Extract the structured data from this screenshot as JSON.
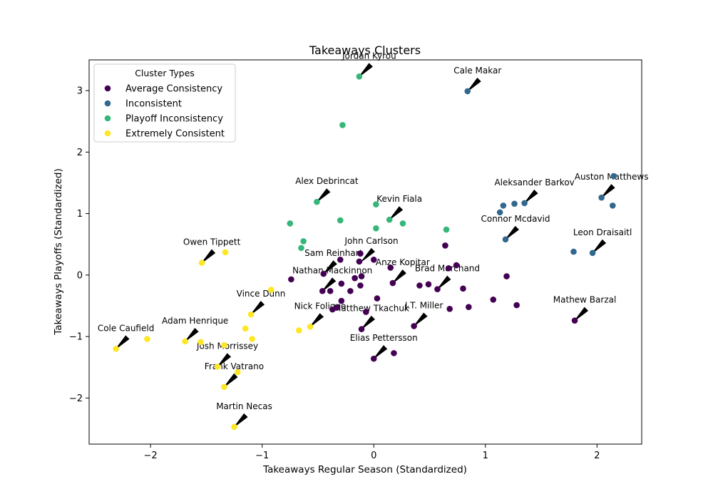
{
  "chart_data": {
    "type": "scatter",
    "title": "Takeaways Clusters",
    "xlabel": "Takeaways Regular Season (Standardized)",
    "ylabel": "Takeaways Playoffs (Standardized)",
    "xlim": [
      -2.55,
      2.4
    ],
    "ylim": [
      -2.75,
      3.5
    ],
    "xticks": [
      -2,
      -1,
      0,
      1,
      2
    ],
    "yticks": [
      -2,
      -1,
      0,
      1,
      2,
      3
    ],
    "xtick_labels": [
      "−2",
      "−1",
      "0",
      "1",
      "2"
    ],
    "ytick_labels": [
      "−2",
      "−1",
      "0",
      "1",
      "2",
      "3"
    ],
    "grid": false,
    "legend": {
      "title": "Cluster Types",
      "position": "upper-left",
      "entries": [
        "Average Consistency",
        "Inconsistent",
        "Playoff Inconsistency",
        "Extremely Consistent"
      ]
    },
    "series": [
      {
        "name": "Average Consistency",
        "color": "#440154",
        "points": [
          [
            0.0,
            0.25
          ],
          [
            -0.12,
            0.35
          ],
          [
            0.15,
            0.12
          ],
          [
            -0.3,
            0.25
          ],
          [
            -0.13,
            0.22
          ],
          [
            -0.45,
            0.02
          ],
          [
            -0.74,
            -0.07
          ],
          [
            -0.11,
            -0.02
          ],
          [
            -0.17,
            -0.05
          ],
          [
            -0.29,
            -0.14
          ],
          [
            -0.12,
            -0.17
          ],
          [
            -0.46,
            -0.26
          ],
          [
            -0.39,
            -0.26
          ],
          [
            -0.21,
            -0.26
          ],
          [
            0.17,
            -0.13
          ],
          [
            0.41,
            -0.17
          ],
          [
            0.49,
            -0.15
          ],
          [
            0.57,
            -0.23
          ],
          [
            0.8,
            -0.22
          ],
          [
            0.74,
            0.16
          ],
          [
            0.67,
            0.11
          ],
          [
            0.64,
            0.48
          ],
          [
            1.19,
            -0.02
          ],
          [
            0.03,
            -0.38
          ],
          [
            -0.29,
            -0.42
          ],
          [
            -0.33,
            -0.53
          ],
          [
            -0.37,
            -0.56
          ],
          [
            -0.07,
            -0.6
          ],
          [
            1.07,
            -0.4
          ],
          [
            1.28,
            -0.49
          ],
          [
            0.68,
            -0.55
          ],
          [
            0.85,
            -0.52
          ],
          [
            0.36,
            -0.83
          ],
          [
            -0.11,
            -0.88
          ],
          [
            1.8,
            -0.74
          ],
          [
            0.0,
            -1.36
          ],
          [
            0.18,
            -1.27
          ]
        ]
      },
      {
        "name": "Inconsistent",
        "color": "#31688e",
        "points": [
          [
            0.84,
            2.99
          ],
          [
            1.16,
            1.13
          ],
          [
            1.26,
            1.16
          ],
          [
            1.35,
            1.17
          ],
          [
            1.13,
            1.02
          ],
          [
            1.18,
            0.58
          ],
          [
            2.04,
            1.26
          ],
          [
            2.15,
            1.61
          ],
          [
            2.14,
            1.13
          ],
          [
            1.79,
            0.38
          ],
          [
            1.96,
            0.36
          ]
        ]
      },
      {
        "name": "Playoff Inconsistency",
        "color": "#35b779",
        "points": [
          [
            -0.13,
            3.23
          ],
          [
            -0.28,
            2.44
          ],
          [
            -0.51,
            1.19
          ],
          [
            0.02,
            1.15
          ],
          [
            0.14,
            0.9
          ],
          [
            -0.3,
            0.89
          ],
          [
            0.26,
            0.84
          ],
          [
            -0.75,
            0.84
          ],
          [
            0.02,
            0.76
          ],
          [
            0.65,
            0.74
          ],
          [
            -0.63,
            0.55
          ],
          [
            -0.65,
            0.44
          ]
        ]
      },
      {
        "name": "Extremely Consistent",
        "color": "#fde725",
        "points": [
          [
            -1.33,
            0.37
          ],
          [
            -1.54,
            0.2
          ],
          [
            -0.92,
            -0.24
          ],
          [
            -1.1,
            -0.64
          ],
          [
            -1.15,
            -0.87
          ],
          [
            -1.09,
            -1.04
          ],
          [
            -0.67,
            -0.9
          ],
          [
            -0.57,
            -0.84
          ],
          [
            -1.69,
            -1.08
          ],
          [
            -1.55,
            -1.09
          ],
          [
            -1.34,
            -1.14
          ],
          [
            -2.31,
            -1.2
          ],
          [
            -2.03,
            -1.04
          ],
          [
            -1.4,
            -1.49
          ],
          [
            -1.22,
            -1.58
          ],
          [
            -1.34,
            -1.82
          ],
          [
            -1.25,
            -2.47
          ]
        ]
      }
    ],
    "annotations": [
      {
        "text": "Jordan Kyrou",
        "x": -0.13,
        "y": 3.23
      },
      {
        "text": "Cale Makar",
        "x": 0.84,
        "y": 2.99
      },
      {
        "text": "Alex Debrincat",
        "x": -0.51,
        "y": 1.19
      },
      {
        "text": "Kevin Fiala",
        "x": 0.14,
        "y": 0.9
      },
      {
        "text": "Aleksander Barkov",
        "x": 1.35,
        "y": 1.17
      },
      {
        "text": "Auston Matthews",
        "x": 2.04,
        "y": 1.26
      },
      {
        "text": "Connor Mcdavid",
        "x": 1.18,
        "y": 0.58
      },
      {
        "text": "Leon Draisaitl",
        "x": 1.96,
        "y": 0.36
      },
      {
        "text": "Owen Tippett",
        "x": -1.54,
        "y": 0.2
      },
      {
        "text": "John Carlson",
        "x": -0.11,
        "y": 0.22
      },
      {
        "text": "Sam Reinhart",
        "x": -0.45,
        "y": 0.02
      },
      {
        "text": "Anze Kopitar",
        "x": 0.17,
        "y": -0.13
      },
      {
        "text": "Brad Marchand",
        "x": 0.57,
        "y": -0.23
      },
      {
        "text": "Nathan Mackinnon",
        "x": -0.46,
        "y": -0.26
      },
      {
        "text": "Vince Dunn",
        "x": -1.1,
        "y": -0.64
      },
      {
        "text": "Nick Foligno",
        "x": -0.57,
        "y": -0.84
      },
      {
        "text": "Matthew Tkachuk",
        "x": -0.11,
        "y": -0.88
      },
      {
        "text": "J.T. Miller",
        "x": 0.36,
        "y": -0.83
      },
      {
        "text": "Mathew Barzal",
        "x": 1.8,
        "y": -0.74
      },
      {
        "text": "Adam Henrique",
        "x": -1.69,
        "y": -1.08
      },
      {
        "text": "Cole Caufield",
        "x": -2.31,
        "y": -1.2
      },
      {
        "text": "Josh Morrissey",
        "x": -1.4,
        "y": -1.49
      },
      {
        "text": "Frank Vatrano",
        "x": -1.34,
        "y": -1.82
      },
      {
        "text": "Elias Pettersson",
        "x": 0.0,
        "y": -1.36
      },
      {
        "text": "Martin Necas",
        "x": -1.25,
        "y": -2.47
      }
    ]
  }
}
